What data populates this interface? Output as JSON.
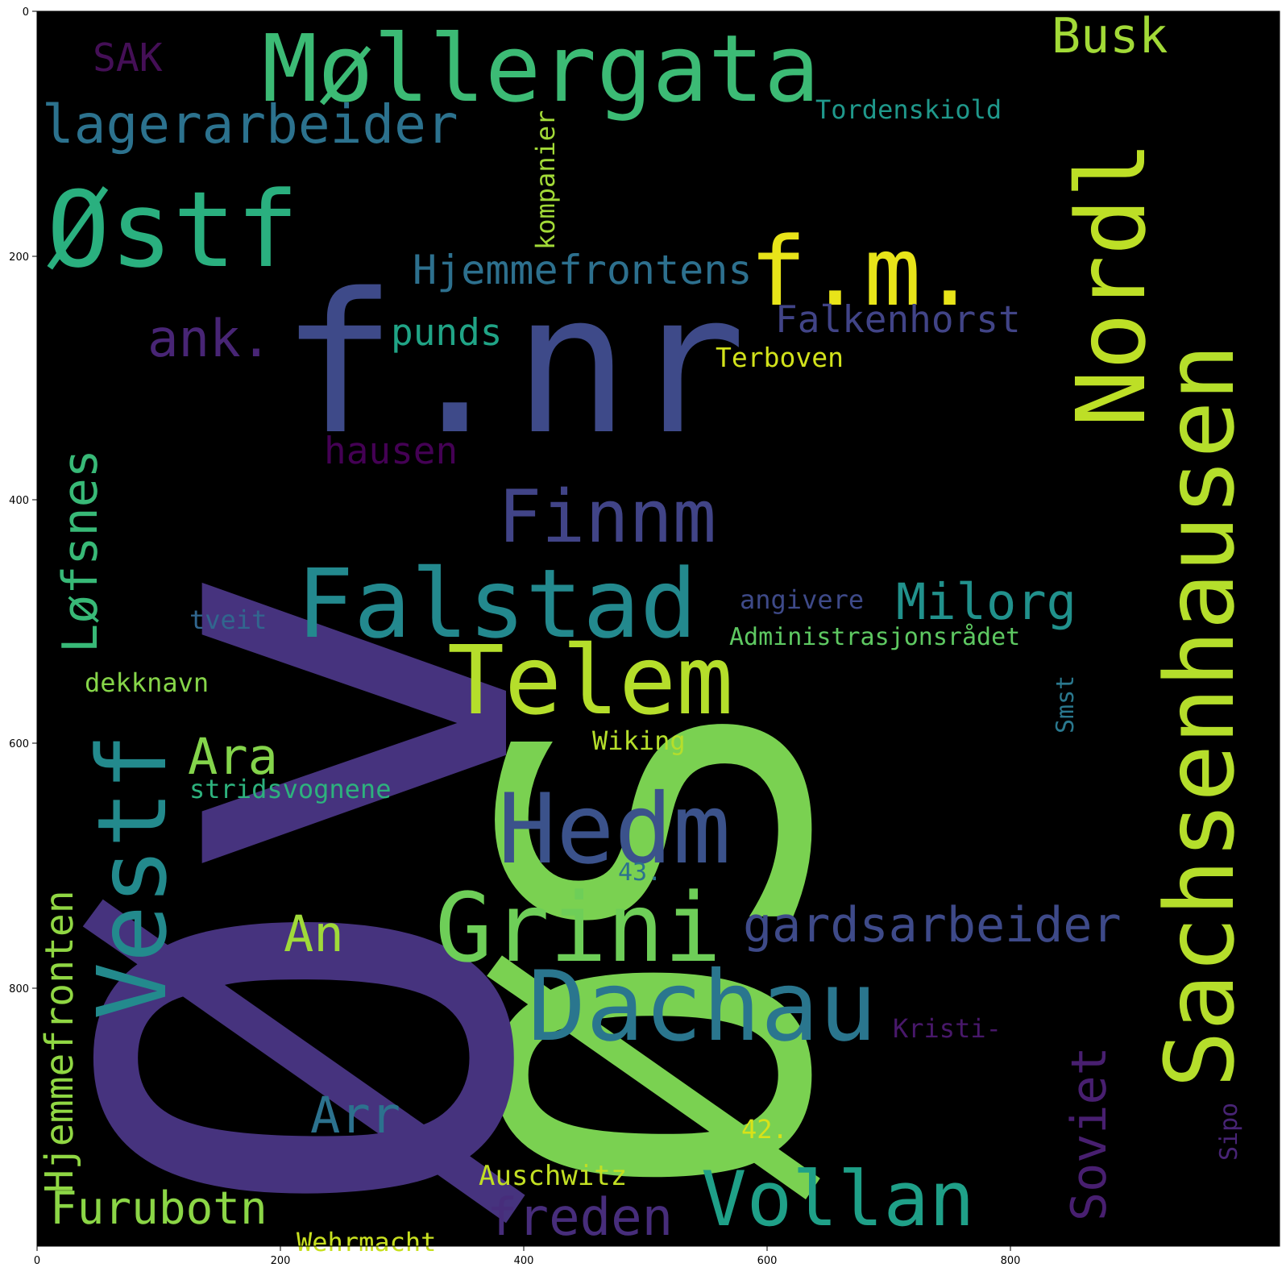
{
  "figure": {
    "x_ticks": [
      "0",
      "200",
      "400",
      "600",
      "800"
    ],
    "y_ticks": [
      "0",
      "200",
      "400",
      "600",
      "800"
    ],
    "background": "#000000"
  },
  "words": [
    {
      "text": "ØS",
      "color": "#7ad151",
      "rotate": true
    },
    {
      "text": "Øv",
      "color": "#46337e",
      "rotate": true
    },
    {
      "text": "f.nr",
      "color": "#3e4a89",
      "rotate": false
    },
    {
      "text": "Møllergata",
      "color": "#3cbb75",
      "rotate": false
    },
    {
      "text": "Sachsenhausen",
      "color": "#b5de2b",
      "rotate": true
    },
    {
      "text": "Nordl",
      "color": "#bddf26",
      "rotate": true
    },
    {
      "text": "Østf",
      "color": "#2ab07f",
      "rotate": false
    },
    {
      "text": "f.m.",
      "color": "#e8e419",
      "rotate": false
    },
    {
      "text": "Busk",
      "color": "#a2da37",
      "rotate": false
    },
    {
      "text": "SAK",
      "color": "#440f56",
      "rotate": false
    },
    {
      "text": "lagerarbeider",
      "color": "#2c728e",
      "rotate": false
    },
    {
      "text": "Tordenskiold",
      "color": "#1f988b",
      "rotate": false
    },
    {
      "text": "kompanier",
      "color": "#a2da37",
      "rotate": true
    },
    {
      "text": "Hjemmefrontens",
      "color": "#2d708e",
      "rotate": false
    },
    {
      "text": "Falkenhorst",
      "color": "#414487",
      "rotate": false
    },
    {
      "text": "ank.",
      "color": "#482575",
      "rotate": false
    },
    {
      "text": "punds",
      "color": "#20a486",
      "rotate": false
    },
    {
      "text": "Terboven",
      "color": "#d2e21b",
      "rotate": false
    },
    {
      "text": "hausen",
      "color": "#440154",
      "rotate": false
    },
    {
      "text": "Finnm",
      "color": "#414487",
      "rotate": false
    },
    {
      "text": "Løfsnes",
      "color": "#38b977",
      "rotate": true
    },
    {
      "text": "Falstad",
      "color": "#23898e",
      "rotate": false
    },
    {
      "text": "Milorg",
      "color": "#21918c",
      "rotate": false
    },
    {
      "text": "angivere",
      "color": "#3e4a89",
      "rotate": false
    },
    {
      "text": "tveit",
      "color": "#31668e",
      "rotate": false
    },
    {
      "text": "Administrasjonsrådet",
      "color": "#5ec962",
      "rotate": false
    },
    {
      "text": "Telem",
      "color": "#b5de2b",
      "rotate": false
    },
    {
      "text": "dekknavn",
      "color": "#86d549",
      "rotate": false
    },
    {
      "text": "Vestf",
      "color": "#238a8d",
      "rotate": true
    },
    {
      "text": "Ara",
      "color": "#84d44b",
      "rotate": false
    },
    {
      "text": "Smst",
      "color": "#2a788e",
      "rotate": true
    },
    {
      "text": "Wiking",
      "color": "#b5de2b",
      "rotate": false
    },
    {
      "text": "stridsvognene",
      "color": "#2db27d",
      "rotate": false
    },
    {
      "text": "Hedm",
      "color": "#3b528b",
      "rotate": false
    },
    {
      "text": "43.",
      "color": "#2c728e",
      "rotate": false
    },
    {
      "text": "Hjemmefronten",
      "color": "#90d743",
      "rotate": true
    },
    {
      "text": "An",
      "color": "#a0da39",
      "rotate": false
    },
    {
      "text": "Grini",
      "color": "#6ece58",
      "rotate": false
    },
    {
      "text": "gardsarbeider",
      "color": "#3e4a89",
      "rotate": false
    },
    {
      "text": "Dachau",
      "color": "#2a768e",
      "rotate": false
    },
    {
      "text": "Kristi-",
      "color": "#48186a",
      "rotate": false
    },
    {
      "text": "Soviet",
      "color": "#481f70",
      "rotate": true
    },
    {
      "text": "Arr",
      "color": "#2c728e",
      "rotate": false
    },
    {
      "text": "42.",
      "color": "#d8e219",
      "rotate": false
    },
    {
      "text": "Sipo",
      "color": "#482475",
      "rotate": true
    },
    {
      "text": "Auschwitz",
      "color": "#c2df23",
      "rotate": false
    },
    {
      "text": "Furubotn",
      "color": "#8bd646",
      "rotate": false
    },
    {
      "text": "freden",
      "color": "#472d7b",
      "rotate": false
    },
    {
      "text": "Vollan",
      "color": "#1fa088",
      "rotate": false
    },
    {
      "text": "Wehrmacht",
      "color": "#c8e020",
      "rotate": false
    }
  ]
}
